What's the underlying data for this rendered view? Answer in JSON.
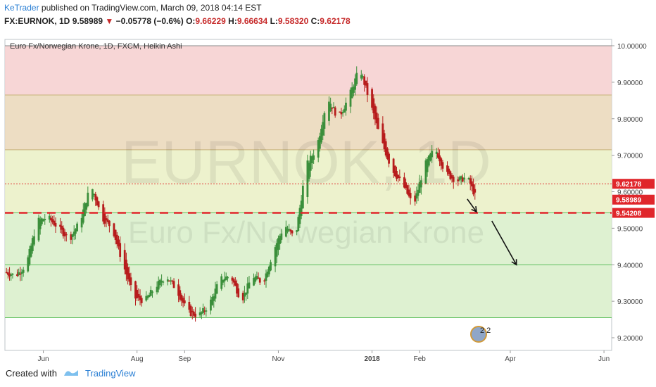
{
  "header": {
    "author": "KeTrader",
    "published_text": "published on TradingView.com, March 09, 2018 04:14 EST",
    "symbol": "FX:EURNOK, 1D",
    "last": "9.58989",
    "change_arrow": "▼",
    "change": "−0.05778 (−0.6%)",
    "o_label": "O:",
    "o_value": "9.66229",
    "h_label": "H:",
    "h_value": "9.66634",
    "l_label": "L:",
    "l_value": "9.58320",
    "c_label": "C:",
    "c_value": "9.62178"
  },
  "chart_title": "Euro Fx/Norwegian Krone, 1D, FXCM, Heikin Ashi",
  "watermark": {
    "ticker": "EURNOK, 1D",
    "name": "Euro Fx/Norwegian Krone"
  },
  "footer": {
    "created_with": "Created with",
    "brand": "TradingView"
  },
  "alert_badge": "2 2",
  "colors": {
    "up": "#3b8f3b",
    "down": "#b71c1c",
    "zone_red": "#f6cfcf",
    "zone_tan": "#ead7b8",
    "zone_yellow": "#eaf0c4",
    "zone_green": "#d8efc9",
    "level_line": "#e0262b",
    "price_badge": "#e0262b"
  },
  "chart_data": {
    "type": "candlestick",
    "style": "Heikin Ashi",
    "ylim": [
      9.18,
      10.02
    ],
    "y_ticks": [
      "10.00000",
      "9.90000",
      "9.80000",
      "9.70000",
      "9.60000",
      "9.50000",
      "9.40000",
      "9.30000",
      "9.20000"
    ],
    "y_tick_values": [
      10.0,
      9.9,
      9.8,
      9.7,
      9.6,
      9.5,
      9.4,
      9.3,
      9.2
    ],
    "x_ticks": [
      "Jun",
      "Aug",
      "Sep",
      "Nov",
      "2018",
      "Feb",
      "Apr",
      "Jun"
    ],
    "x_tick_dates": [
      "2017-06-01",
      "2017-08-01",
      "2017-09-01",
      "2017-11-01",
      "2018-01-01",
      "2018-02-01",
      "2018-04-01",
      "2018-06-01"
    ],
    "x_range": [
      "2017-05-07",
      "2018-06-06"
    ],
    "price_labels": [
      {
        "value": 9.62178,
        "text": "9.62178"
      },
      {
        "value": 9.58989,
        "text": "9.58989"
      },
      {
        "value": 9.54208,
        "text": "9.54208"
      }
    ],
    "zones": [
      {
        "from": 9.865,
        "to": 10.0,
        "color": "red"
      },
      {
        "from": 9.715,
        "to": 9.865,
        "color": "tan"
      },
      {
        "from": 9.54208,
        "to": 9.715,
        "color": "yellow"
      },
      {
        "from": 9.4,
        "to": 9.54208,
        "color": "green"
      },
      {
        "from": 9.255,
        "to": 9.4,
        "color": "green"
      }
    ],
    "support_level": 9.54208,
    "arrows": [
      {
        "from": [
          "2018-03-04",
          9.58
        ],
        "to": [
          "2018-03-10",
          9.545
        ]
      },
      {
        "from": [
          "2018-03-20",
          9.52
        ],
        "to": [
          "2018-04-05",
          9.4
        ]
      }
    ],
    "price_path": [
      [
        "2017-05-07",
        9.38
      ],
      [
        "2017-05-14",
        9.37
      ],
      [
        "2017-05-21",
        9.4
      ],
      [
        "2017-05-28",
        9.52
      ],
      [
        "2017-06-04",
        9.53
      ],
      [
        "2017-06-11",
        9.5
      ],
      [
        "2017-06-18",
        9.47
      ],
      [
        "2017-06-25",
        9.52
      ],
      [
        "2017-07-02",
        9.62
      ],
      [
        "2017-07-09",
        9.53
      ],
      [
        "2017-07-16",
        9.5
      ],
      [
        "2017-07-23",
        9.4
      ],
      [
        "2017-07-30",
        9.31
      ],
      [
        "2017-08-06",
        9.3
      ],
      [
        "2017-08-13",
        9.34
      ],
      [
        "2017-08-20",
        9.37
      ],
      [
        "2017-08-27",
        9.33
      ],
      [
        "2017-09-03",
        9.27
      ],
      [
        "2017-09-10",
        9.26
      ],
      [
        "2017-09-17",
        9.29
      ],
      [
        "2017-09-24",
        9.36
      ],
      [
        "2017-10-01",
        9.37
      ],
      [
        "2017-10-08",
        9.3
      ],
      [
        "2017-10-15",
        9.37
      ],
      [
        "2017-10-22",
        9.35
      ],
      [
        "2017-10-29",
        9.44
      ],
      [
        "2017-11-05",
        9.51
      ],
      [
        "2017-11-12",
        9.47
      ],
      [
        "2017-11-19",
        9.67
      ],
      [
        "2017-11-26",
        9.72
      ],
      [
        "2017-12-03",
        9.86
      ],
      [
        "2017-12-10",
        9.8
      ],
      [
        "2017-12-17",
        9.86
      ],
      [
        "2017-12-24",
        9.94
      ],
      [
        "2017-12-31",
        9.84
      ],
      [
        "2018-01-07",
        9.74
      ],
      [
        "2018-01-14",
        9.66
      ],
      [
        "2018-01-21",
        9.62
      ],
      [
        "2018-01-28",
        9.56
      ],
      [
        "2018-02-04",
        9.67
      ],
      [
        "2018-02-11",
        9.72
      ],
      [
        "2018-02-18",
        9.65
      ],
      [
        "2018-02-25",
        9.63
      ],
      [
        "2018-03-04",
        9.64
      ],
      [
        "2018-03-09",
        9.59
      ]
    ]
  }
}
